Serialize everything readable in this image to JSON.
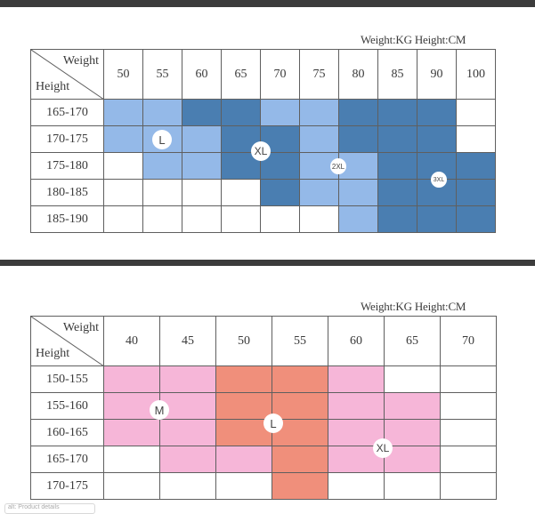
{
  "colors": {
    "light_blue": "#94b9e8",
    "dark_blue": "#4a7eb1",
    "pink": "#f6b6d8",
    "salmon": "#f08f7b"
  },
  "chart1": {
    "units_label": "Weight:KG Height:CM",
    "weight_header": "Weight",
    "height_header": "Height",
    "weights": [
      "50",
      "55",
      "60",
      "65",
      "70",
      "75",
      "80",
      "85",
      "90",
      "100"
    ],
    "heights": [
      "165-170",
      "170-175",
      "175-180",
      "180-185",
      "185-190"
    ],
    "cells": [
      [
        "L",
        "L",
        "D",
        "D",
        "L",
        "L",
        "D",
        "D",
        "D",
        "W"
      ],
      [
        "L",
        "L",
        "L",
        "D",
        "D",
        "L",
        "D",
        "D",
        "D",
        "W"
      ],
      [
        "W",
        "L",
        "L",
        "D",
        "D",
        "L",
        "L",
        "D",
        "D",
        "D"
      ],
      [
        "W",
        "W",
        "W",
        "W",
        "D",
        "L",
        "L",
        "D",
        "D",
        "D"
      ],
      [
        "W",
        "W",
        "W",
        "W",
        "W",
        "W",
        "L",
        "D",
        "D",
        "D"
      ]
    ],
    "size_labels": [
      "L",
      "XL",
      "2XL",
      "3XL"
    ]
  },
  "chart2": {
    "units_label": "Weight:KG Height:CM",
    "weight_header": "Weight",
    "height_header": "Height",
    "weights": [
      "40",
      "45",
      "50",
      "55",
      "60",
      "65",
      "70"
    ],
    "heights": [
      "150-155",
      "155-160",
      "160-165",
      "165-170",
      "170-175"
    ],
    "cells": [
      [
        "P",
        "P",
        "S",
        "S",
        "P",
        "W",
        "W"
      ],
      [
        "P",
        "P",
        "S",
        "S",
        "P",
        "P",
        "W"
      ],
      [
        "P",
        "P",
        "S",
        "S",
        "P",
        "P",
        "W"
      ],
      [
        "W",
        "P",
        "P",
        "S",
        "P",
        "P",
        "W"
      ],
      [
        "W",
        "W",
        "W",
        "S",
        "W",
        "W",
        "W"
      ]
    ],
    "size_labels": [
      "M",
      "L",
      "XL"
    ]
  },
  "watermark": "alt: Product details"
}
